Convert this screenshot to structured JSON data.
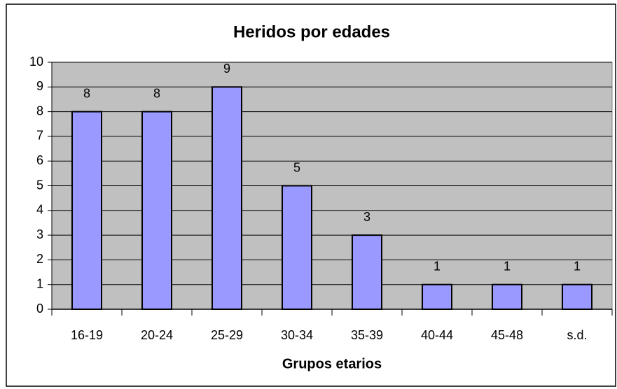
{
  "chart_data": {
    "type": "bar",
    "title": "Heridos por edades",
    "x_label": "Grupos etarios",
    "categories": [
      "16-19",
      "20-24",
      "25-29",
      "30-34",
      "35-39",
      "40-44",
      "45-48",
      "s.d."
    ],
    "values": [
      8,
      8,
      9,
      5,
      3,
      1,
      1,
      1
    ],
    "color": "#9999ff",
    "ylim": [
      0,
      10
    ],
    "yticks": [
      0,
      1,
      2,
      3,
      4,
      5,
      6,
      7,
      8,
      9,
      10
    ],
    "grid": true
  }
}
